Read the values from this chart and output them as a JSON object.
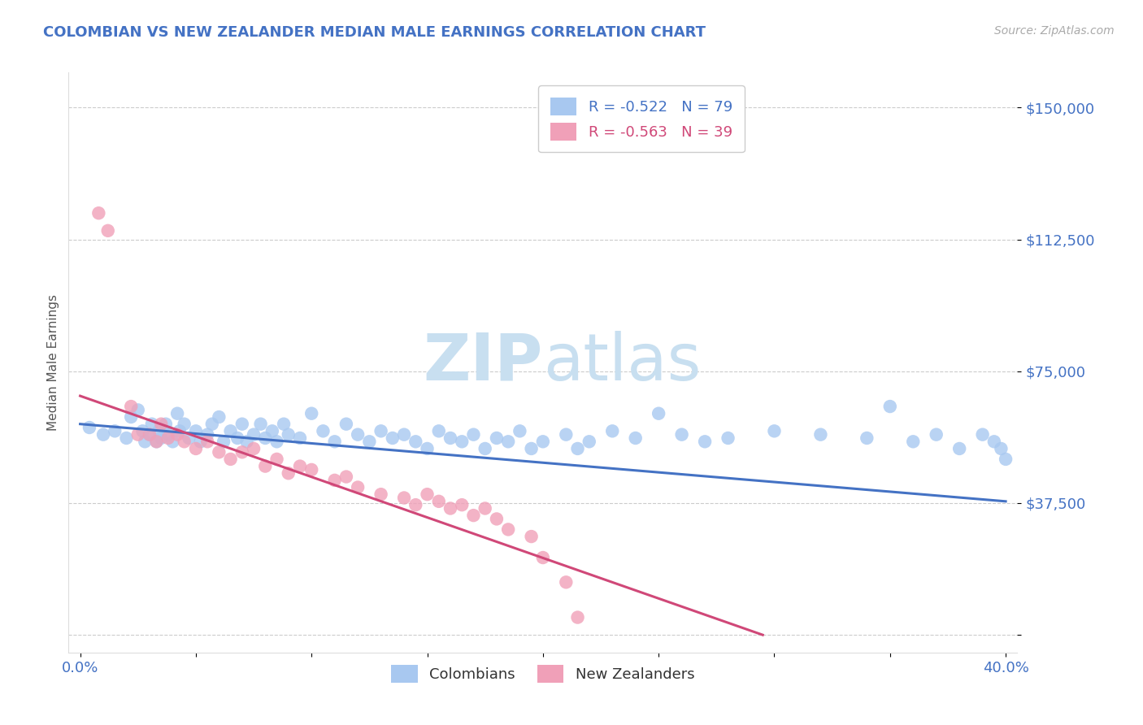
{
  "title": "COLOMBIAN VS NEW ZEALANDER MEDIAN MALE EARNINGS CORRELATION CHART",
  "source": "Source: ZipAtlas.com",
  "ylabel": "Median Male Earnings",
  "xlim": [
    -0.005,
    0.405
  ],
  "ylim": [
    -5000,
    160000
  ],
  "yticks": [
    0,
    37500,
    75000,
    112500,
    150000
  ],
  "ytick_labels": [
    "",
    "$37,500",
    "$75,000",
    "$112,500",
    "$150,000"
  ],
  "xticks": [
    0.0,
    0.05,
    0.1,
    0.15,
    0.2,
    0.25,
    0.3,
    0.35,
    0.4
  ],
  "xtick_labels": [
    "0.0%",
    "",
    "",
    "",
    "",
    "",
    "",
    "",
    "40.0%"
  ],
  "blue_R": -0.522,
  "blue_N": 79,
  "pink_R": -0.563,
  "pink_N": 39,
  "blue_color": "#a8c8f0",
  "pink_color": "#f0a0b8",
  "blue_line_color": "#4472c4",
  "pink_line_color": "#d04878",
  "title_color": "#4472c4",
  "axis_color": "#4472c4",
  "watermark_zip": "ZIP",
  "watermark_atlas": "atlas",
  "watermark_color": "#c8dff0",
  "legend_label_blue": "Colombians",
  "legend_label_pink": "New Zealanders",
  "background_color": "#ffffff",
  "grid_color": "#cccccc",
  "blue_x": [
    0.004,
    0.01,
    0.015,
    0.02,
    0.022,
    0.025,
    0.027,
    0.028,
    0.03,
    0.031,
    0.033,
    0.034,
    0.035,
    0.037,
    0.038,
    0.04,
    0.042,
    0.043,
    0.045,
    0.047,
    0.05,
    0.052,
    0.055,
    0.057,
    0.06,
    0.062,
    0.065,
    0.068,
    0.07,
    0.072,
    0.075,
    0.078,
    0.08,
    0.083,
    0.085,
    0.088,
    0.09,
    0.095,
    0.1,
    0.105,
    0.11,
    0.115,
    0.12,
    0.125,
    0.13,
    0.135,
    0.14,
    0.145,
    0.15,
    0.155,
    0.16,
    0.165,
    0.17,
    0.175,
    0.18,
    0.185,
    0.19,
    0.195,
    0.2,
    0.21,
    0.215,
    0.22,
    0.23,
    0.24,
    0.25,
    0.26,
    0.27,
    0.28,
    0.3,
    0.32,
    0.34,
    0.35,
    0.36,
    0.37,
    0.38,
    0.39,
    0.395,
    0.398,
    0.4
  ],
  "blue_y": [
    59000,
    57000,
    58000,
    56000,
    62000,
    64000,
    58000,
    55000,
    57000,
    60000,
    55000,
    58000,
    56000,
    60000,
    57000,
    55000,
    63000,
    58000,
    60000,
    56000,
    58000,
    55000,
    57000,
    60000,
    62000,
    55000,
    58000,
    56000,
    60000,
    55000,
    57000,
    60000,
    56000,
    58000,
    55000,
    60000,
    57000,
    56000,
    63000,
    58000,
    55000,
    60000,
    57000,
    55000,
    58000,
    56000,
    57000,
    55000,
    53000,
    58000,
    56000,
    55000,
    57000,
    53000,
    56000,
    55000,
    58000,
    53000,
    55000,
    57000,
    53000,
    55000,
    58000,
    56000,
    63000,
    57000,
    55000,
    56000,
    58000,
    57000,
    56000,
    65000,
    55000,
    57000,
    53000,
    57000,
    55000,
    53000,
    50000
  ],
  "pink_x": [
    0.008,
    0.012,
    0.022,
    0.025,
    0.03,
    0.033,
    0.035,
    0.038,
    0.042,
    0.045,
    0.05,
    0.055,
    0.06,
    0.065,
    0.07,
    0.075,
    0.08,
    0.085,
    0.09,
    0.095,
    0.1,
    0.11,
    0.115,
    0.12,
    0.13,
    0.14,
    0.145,
    0.15,
    0.155,
    0.16,
    0.165,
    0.17,
    0.175,
    0.18,
    0.185,
    0.195,
    0.2,
    0.21,
    0.215
  ],
  "pink_y": [
    120000,
    115000,
    65000,
    57000,
    57000,
    55000,
    60000,
    56000,
    57000,
    55000,
    53000,
    55000,
    52000,
    50000,
    52000,
    53000,
    48000,
    50000,
    46000,
    48000,
    47000,
    44000,
    45000,
    42000,
    40000,
    39000,
    37000,
    40000,
    38000,
    36000,
    37000,
    34000,
    36000,
    33000,
    30000,
    28000,
    22000,
    15000,
    5000
  ],
  "blue_trend_x": [
    0.0,
    0.4
  ],
  "blue_trend_y": [
    60000,
    38000
  ],
  "pink_trend_x": [
    0.0,
    0.295
  ],
  "pink_trend_y": [
    68000,
    0
  ]
}
